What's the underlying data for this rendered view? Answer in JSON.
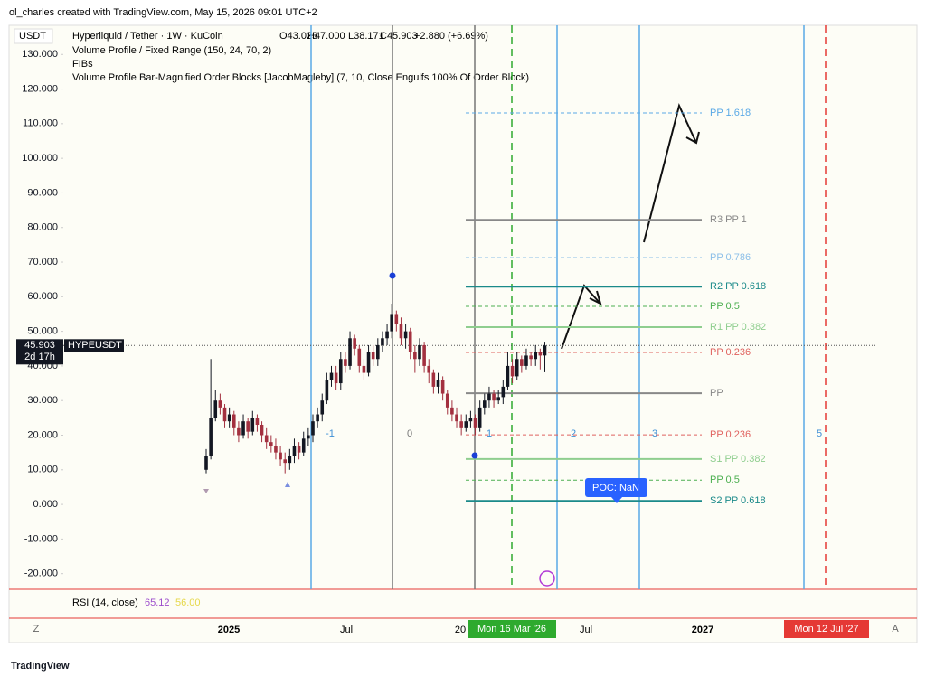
{
  "page": {
    "attribution": "ol_charles created with TradingView.com, May 15, 2026 09:01 UTC+2",
    "logo": "TradingView",
    "corner_left": "Z",
    "corner_right": "A"
  },
  "chart_data": {
    "type": "candlestick",
    "currency": "USDT",
    "title": "Hyperliquid / Tether · 1W · KuCoin",
    "ohlc_text": [
      "O43.023",
      "H47.000",
      "L38.171",
      "C45.903",
      "+2.880 (+6.69%)"
    ],
    "indicators": [
      "Volume Profile / Fixed Range (150, 24, 70, 2)",
      "FIBs",
      "Volume Profile Bar-Magnified Order Blocks [JacobMagleby] (7, 10, Close Engulfs 100% Of Order Block)"
    ],
    "up_color": "#131722",
    "down_color": "#a3303f",
    "series": {
      "open": [
        10,
        14,
        25,
        30,
        28,
        24,
        26,
        22,
        20,
        24,
        21,
        25,
        23,
        20,
        18,
        17,
        15,
        13,
        12,
        14,
        17,
        15,
        19,
        20,
        24,
        26,
        30,
        36,
        38,
        35,
        42,
        40,
        48,
        45,
        40,
        38,
        44,
        42,
        46,
        48,
        50,
        55,
        52,
        48,
        50,
        44,
        42,
        46,
        40,
        38,
        34,
        36,
        32,
        28,
        26,
        24,
        22,
        24,
        25,
        22,
        28,
        30,
        32,
        30,
        31,
        34,
        40,
        37,
        42,
        40,
        43,
        42,
        44,
        43.023
      ],
      "high": [
        16,
        42,
        33,
        32,
        29,
        28,
        27,
        24,
        26,
        25,
        27,
        26,
        24,
        22,
        20,
        19,
        17,
        15,
        16,
        19,
        18,
        21,
        22,
        26,
        28,
        32,
        38,
        40,
        40,
        44,
        44,
        50,
        49,
        46,
        42,
        46,
        46,
        48,
        50,
        52,
        58,
        56,
        54,
        52,
        51,
        46,
        48,
        47,
        42,
        39,
        38,
        37,
        33,
        30,
        28,
        26,
        26,
        27,
        26,
        30,
        32,
        34,
        33,
        33,
        36,
        44,
        42,
        44,
        43,
        45,
        44,
        46,
        45,
        47
      ],
      "low": [
        9,
        13,
        24,
        26,
        22,
        22,
        20,
        18,
        19,
        19,
        20,
        21,
        18,
        16,
        15,
        13,
        11,
        9,
        10,
        12,
        13,
        14,
        17,
        18,
        22,
        24,
        29,
        34,
        33,
        33,
        38,
        39,
        43,
        38,
        36,
        37,
        40,
        40,
        44,
        46,
        48,
        50,
        46,
        45,
        42,
        38,
        40,
        38,
        35,
        32,
        32,
        30,
        26,
        24,
        22,
        20,
        21,
        22,
        20,
        21,
        26,
        28,
        28,
        29,
        29,
        33,
        35,
        36,
        38,
        39,
        40,
        40,
        39,
        38.171
      ],
      "close": [
        14,
        25,
        30,
        28,
        24,
        26,
        22,
        20,
        24,
        21,
        25,
        23,
        20,
        18,
        17,
        15,
        13,
        12,
        14,
        17,
        15,
        19,
        20,
        24,
        26,
        30,
        36,
        38,
        35,
        42,
        40,
        48,
        45,
        40,
        38,
        44,
        42,
        46,
        48,
        50,
        55,
        52,
        48,
        50,
        44,
        42,
        46,
        40,
        38,
        34,
        36,
        32,
        28,
        26,
        24,
        22,
        24,
        25,
        22,
        28,
        30,
        32,
        30,
        31,
        34,
        40,
        37,
        42,
        40,
        43,
        42,
        44,
        43,
        45.903
      ]
    },
    "ylim": [
      -24,
      137.9
    ],
    "yticks": [
      {
        "value": 130,
        "label": "130.000"
      },
      {
        "value": 120,
        "label": "120.000"
      },
      {
        "value": 110,
        "label": "110.000"
      },
      {
        "value": 100,
        "label": "100.000"
      },
      {
        "value": 90,
        "label": "90.000"
      },
      {
        "value": 80,
        "label": "80.000"
      },
      {
        "value": 70,
        "label": "70.000"
      },
      {
        "value": 60,
        "label": "60.000"
      },
      {
        "value": 50,
        "label": "50.000"
      },
      {
        "value": 40,
        "label": "40.000"
      },
      {
        "value": 30,
        "label": "30.000"
      },
      {
        "value": 20,
        "label": "20.000"
      },
      {
        "value": 10,
        "label": "10.000"
      },
      {
        "value": 0,
        "label": "0.000"
      },
      {
        "value": -10,
        "label": "-10.000"
      },
      {
        "value": -20,
        "label": "-20.000"
      }
    ],
    "last_price": {
      "value": 45.903,
      "label": "45.903",
      "symbol": "HYPEUSDT",
      "countdown": "2d 17h"
    },
    "levels": [
      {
        "value": 113.1,
        "label": "PP 1.618",
        "color": "#5aa9e6",
        "dashed": true
      },
      {
        "value": 82.2,
        "label": "R3 PP 1",
        "color": "#888888",
        "dashed": false
      },
      {
        "value": 71.3,
        "label": "PP 0.786",
        "color": "#8cbfe8",
        "dashed": true
      },
      {
        "value": 62.9,
        "label": "R2 PP 0.618",
        "color": "#1b8a8a",
        "dashed": false
      },
      {
        "value": 57.2,
        "label": "PP 0.5",
        "color": "#4caf50",
        "dashed": true
      },
      {
        "value": 51.2,
        "label": "R1 PP 0.382",
        "color": "#8fce8f",
        "dashed": false
      },
      {
        "value": 43.9,
        "label": "PP 0.236",
        "color": "#e0625f",
        "dashed": true
      },
      {
        "value": 32.1,
        "label": "PP",
        "color": "#888888",
        "dashed": false
      },
      {
        "value": 20.1,
        "label": "PP 0.236",
        "color": "#e0625f",
        "dashed": true
      },
      {
        "value": 13.1,
        "label": "S1 PP 0.382",
        "color": "#8fce8f",
        "dashed": false
      },
      {
        "value": 7.0,
        "label": "PP 0.5",
        "color": "#4caf50",
        "dashed": true
      },
      {
        "value": 1.0,
        "label": "S2 PP 0.618",
        "color": "#1b8a8a",
        "dashed": false
      }
    ],
    "fib_labels": [
      "-1",
      "0",
      "1",
      "2",
      "3",
      "5"
    ],
    "time_labels": [
      "2025",
      "Jul",
      "20",
      "Jul",
      "2027"
    ],
    "date_badges": [
      "Mon 16 Mar '26",
      "Mon 12 Jul '27"
    ],
    "poc": "POC: NaN",
    "rsi": {
      "label": "RSI (14, close)",
      "value": "65.12",
      "ma": "56.00"
    }
  }
}
